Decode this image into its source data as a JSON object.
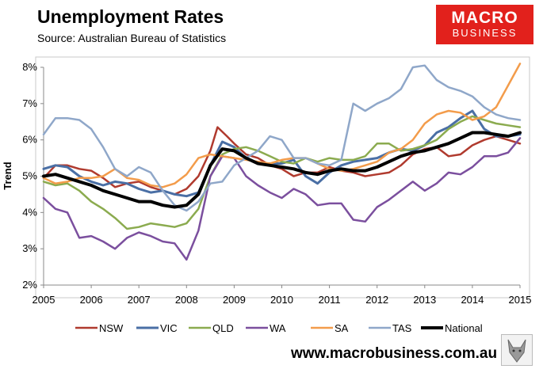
{
  "header": {
    "title": "Unemployment Rates",
    "source": "Source: Australian Bureau of Statistics"
  },
  "brand": {
    "logo_line1": "MACRO",
    "logo_line2": "BUSINESS",
    "website": "www.macrobusiness.com.au",
    "accent_color": "#e2211c"
  },
  "chart_data": {
    "type": "line",
    "title": "Unemployment Rates",
    "xlabel": "",
    "ylabel": "Trend",
    "xlim": [
      2005,
      2015
    ],
    "ylim": [
      2,
      8
    ],
    "y_ticks": [
      2,
      3,
      4,
      5,
      6,
      7,
      8
    ],
    "y_tick_labels": [
      "2%",
      "3%",
      "4%",
      "5%",
      "6%",
      "7%",
      "8%"
    ],
    "x_ticks": [
      2005,
      2006,
      2007,
      2008,
      2009,
      2010,
      2011,
      2012,
      2013,
      2014,
      2015
    ],
    "x_tick_labels": [
      "2005",
      "2006",
      "2007",
      "2008",
      "2009",
      "2010",
      "2011",
      "2012",
      "2013",
      "2014",
      "2015"
    ],
    "grid": false,
    "legend_position": "bottom",
    "series": [
      {
        "name": "NSW",
        "color": "#b03a2e",
        "width": 2.5,
        "points": [
          [
            2005,
            4.95
          ],
          [
            2005.25,
            5.3
          ],
          [
            2005.5,
            5.3
          ],
          [
            2005.75,
            5.2
          ],
          [
            2006,
            5.15
          ],
          [
            2006.25,
            4.95
          ],
          [
            2006.5,
            4.7
          ],
          [
            2006.75,
            4.8
          ],
          [
            2007,
            4.85
          ],
          [
            2007.25,
            4.7
          ],
          [
            2007.5,
            4.6
          ],
          [
            2007.75,
            4.5
          ],
          [
            2008,
            4.65
          ],
          [
            2008.25,
            5.0
          ],
          [
            2008.5,
            5.7
          ],
          [
            2008.65,
            6.35
          ],
          [
            2008.85,
            6.1
          ],
          [
            2009,
            5.9
          ],
          [
            2009.25,
            5.6
          ],
          [
            2009.5,
            5.5
          ],
          [
            2009.75,
            5.3
          ],
          [
            2010,
            5.2
          ],
          [
            2010.25,
            5.0
          ],
          [
            2010.5,
            5.1
          ],
          [
            2010.75,
            5.1
          ],
          [
            2011,
            5.25
          ],
          [
            2011.25,
            5.15
          ],
          [
            2011.5,
            5.1
          ],
          [
            2011.75,
            5.0
          ],
          [
            2012,
            5.05
          ],
          [
            2012.25,
            5.1
          ],
          [
            2012.5,
            5.3
          ],
          [
            2012.75,
            5.6
          ],
          [
            2013,
            5.75
          ],
          [
            2013.25,
            5.8
          ],
          [
            2013.5,
            5.55
          ],
          [
            2013.75,
            5.6
          ],
          [
            2014,
            5.85
          ],
          [
            2014.25,
            6.0
          ],
          [
            2014.5,
            6.1
          ],
          [
            2014.75,
            6.0
          ],
          [
            2015,
            5.9
          ]
        ]
      },
      {
        "name": "VIC",
        "color": "#4a6fa5",
        "width": 3,
        "points": [
          [
            2005,
            5.2
          ],
          [
            2005.25,
            5.3
          ],
          [
            2005.5,
            5.25
          ],
          [
            2005.75,
            5.0
          ],
          [
            2006,
            4.85
          ],
          [
            2006.25,
            4.75
          ],
          [
            2006.5,
            4.85
          ],
          [
            2006.75,
            4.8
          ],
          [
            2007,
            4.65
          ],
          [
            2007.25,
            4.55
          ],
          [
            2007.5,
            4.6
          ],
          [
            2007.75,
            4.5
          ],
          [
            2008,
            4.45
          ],
          [
            2008.25,
            4.55
          ],
          [
            2008.5,
            5.3
          ],
          [
            2008.75,
            5.95
          ],
          [
            2009,
            5.8
          ],
          [
            2009.25,
            5.5
          ],
          [
            2009.5,
            5.35
          ],
          [
            2009.75,
            5.35
          ],
          [
            2010,
            5.35
          ],
          [
            2010.25,
            5.45
          ],
          [
            2010.5,
            5.0
          ],
          [
            2010.75,
            4.8
          ],
          [
            2011,
            5.1
          ],
          [
            2011.25,
            5.3
          ],
          [
            2011.5,
            5.4
          ],
          [
            2011.75,
            5.45
          ],
          [
            2012,
            5.5
          ],
          [
            2012.25,
            5.65
          ],
          [
            2012.5,
            5.75
          ],
          [
            2012.75,
            5.7
          ],
          [
            2013,
            5.85
          ],
          [
            2013.25,
            6.2
          ],
          [
            2013.5,
            6.35
          ],
          [
            2013.75,
            6.6
          ],
          [
            2014,
            6.8
          ],
          [
            2014.25,
            6.3
          ],
          [
            2014.5,
            6.1
          ],
          [
            2014.75,
            6.1
          ],
          [
            2015,
            6.15
          ]
        ]
      },
      {
        "name": "QLD",
        "color": "#8bab4f",
        "width": 2.5,
        "points": [
          [
            2005,
            4.85
          ],
          [
            2005.25,
            4.75
          ],
          [
            2005.5,
            4.8
          ],
          [
            2005.75,
            4.6
          ],
          [
            2006,
            4.3
          ],
          [
            2006.25,
            4.1
          ],
          [
            2006.5,
            3.85
          ],
          [
            2006.75,
            3.55
          ],
          [
            2007,
            3.6
          ],
          [
            2007.25,
            3.7
          ],
          [
            2007.5,
            3.65
          ],
          [
            2007.75,
            3.6
          ],
          [
            2008,
            3.7
          ],
          [
            2008.25,
            4.1
          ],
          [
            2008.5,
            5.0
          ],
          [
            2008.75,
            5.6
          ],
          [
            2009,
            5.75
          ],
          [
            2009.25,
            5.8
          ],
          [
            2009.5,
            5.7
          ],
          [
            2009.75,
            5.55
          ],
          [
            2010,
            5.4
          ],
          [
            2010.25,
            5.35
          ],
          [
            2010.5,
            5.5
          ],
          [
            2010.75,
            5.4
          ],
          [
            2011,
            5.5
          ],
          [
            2011.25,
            5.45
          ],
          [
            2011.5,
            5.45
          ],
          [
            2011.75,
            5.55
          ],
          [
            2012,
            5.9
          ],
          [
            2012.25,
            5.9
          ],
          [
            2012.5,
            5.7
          ],
          [
            2012.75,
            5.75
          ],
          [
            2013,
            5.85
          ],
          [
            2013.25,
            6.0
          ],
          [
            2013.5,
            6.3
          ],
          [
            2013.75,
            6.5
          ],
          [
            2014,
            6.65
          ],
          [
            2014.25,
            6.55
          ],
          [
            2014.5,
            6.45
          ],
          [
            2014.75,
            6.4
          ],
          [
            2015,
            6.35
          ]
        ]
      },
      {
        "name": "WA",
        "color": "#7b4f9e",
        "width": 2.5,
        "points": [
          [
            2005,
            4.4
          ],
          [
            2005.25,
            4.1
          ],
          [
            2005.5,
            4.0
          ],
          [
            2005.75,
            3.3
          ],
          [
            2006,
            3.35
          ],
          [
            2006.25,
            3.2
          ],
          [
            2006.5,
            3.0
          ],
          [
            2006.75,
            3.3
          ],
          [
            2007,
            3.45
          ],
          [
            2007.25,
            3.35
          ],
          [
            2007.5,
            3.2
          ],
          [
            2007.75,
            3.15
          ],
          [
            2008,
            2.7
          ],
          [
            2008.25,
            3.5
          ],
          [
            2008.5,
            5.0
          ],
          [
            2008.75,
            5.55
          ],
          [
            2009,
            5.5
          ],
          [
            2009.25,
            5.0
          ],
          [
            2009.5,
            4.75
          ],
          [
            2009.75,
            4.55
          ],
          [
            2010,
            4.4
          ],
          [
            2010.25,
            4.65
          ],
          [
            2010.5,
            4.5
          ],
          [
            2010.75,
            4.2
          ],
          [
            2011,
            4.25
          ],
          [
            2011.25,
            4.25
          ],
          [
            2011.5,
            3.8
          ],
          [
            2011.75,
            3.75
          ],
          [
            2012,
            4.15
          ],
          [
            2012.25,
            4.35
          ],
          [
            2012.5,
            4.6
          ],
          [
            2012.75,
            4.85
          ],
          [
            2013,
            4.6
          ],
          [
            2013.25,
            4.8
          ],
          [
            2013.5,
            5.1
          ],
          [
            2013.75,
            5.05
          ],
          [
            2014,
            5.25
          ],
          [
            2014.25,
            5.55
          ],
          [
            2014.5,
            5.55
          ],
          [
            2014.75,
            5.65
          ],
          [
            2015,
            6.05
          ]
        ]
      },
      {
        "name": "SA",
        "color": "#f39c4b",
        "width": 2.5,
        "points": [
          [
            2005,
            4.95
          ],
          [
            2005.25,
            4.8
          ],
          [
            2005.5,
            4.85
          ],
          [
            2005.75,
            4.95
          ],
          [
            2006,
            4.95
          ],
          [
            2006.25,
            5.0
          ],
          [
            2006.5,
            5.2
          ],
          [
            2006.75,
            4.95
          ],
          [
            2007,
            4.9
          ],
          [
            2007.25,
            4.75
          ],
          [
            2007.5,
            4.7
          ],
          [
            2007.75,
            4.8
          ],
          [
            2008,
            5.05
          ],
          [
            2008.25,
            5.5
          ],
          [
            2008.5,
            5.6
          ],
          [
            2008.75,
            5.55
          ],
          [
            2009,
            5.5
          ],
          [
            2009.25,
            5.45
          ],
          [
            2009.5,
            5.4
          ],
          [
            2009.75,
            5.35
          ],
          [
            2010,
            5.45
          ],
          [
            2010.25,
            5.5
          ],
          [
            2010.5,
            5.5
          ],
          [
            2010.75,
            5.35
          ],
          [
            2011,
            5.2
          ],
          [
            2011.25,
            5.15
          ],
          [
            2011.5,
            5.2
          ],
          [
            2011.75,
            5.3
          ],
          [
            2012,
            5.4
          ],
          [
            2012.25,
            5.65
          ],
          [
            2012.5,
            5.75
          ],
          [
            2012.75,
            6.0
          ],
          [
            2013,
            6.45
          ],
          [
            2013.25,
            6.7
          ],
          [
            2013.5,
            6.8
          ],
          [
            2013.75,
            6.75
          ],
          [
            2014,
            6.55
          ],
          [
            2014.25,
            6.65
          ],
          [
            2014.5,
            6.9
          ],
          [
            2014.75,
            7.5
          ],
          [
            2015,
            8.1
          ]
        ]
      },
      {
        "name": "TAS",
        "color": "#8fa7c9",
        "width": 2.5,
        "points": [
          [
            2005,
            6.15
          ],
          [
            2005.25,
            6.6
          ],
          [
            2005.5,
            6.6
          ],
          [
            2005.75,
            6.55
          ],
          [
            2006,
            6.3
          ],
          [
            2006.25,
            5.8
          ],
          [
            2006.5,
            5.2
          ],
          [
            2006.75,
            5.0
          ],
          [
            2007,
            5.25
          ],
          [
            2007.25,
            5.1
          ],
          [
            2007.5,
            4.6
          ],
          [
            2007.75,
            4.2
          ],
          [
            2008,
            4.05
          ],
          [
            2008.25,
            4.3
          ],
          [
            2008.5,
            4.8
          ],
          [
            2008.75,
            4.85
          ],
          [
            2009,
            5.3
          ],
          [
            2009.25,
            5.5
          ],
          [
            2009.5,
            5.7
          ],
          [
            2009.75,
            6.1
          ],
          [
            2010,
            6.0
          ],
          [
            2010.25,
            5.5
          ],
          [
            2010.5,
            5.5
          ],
          [
            2010.75,
            5.35
          ],
          [
            2011,
            5.3
          ],
          [
            2011.25,
            5.45
          ],
          [
            2011.5,
            7.0
          ],
          [
            2011.75,
            6.8
          ],
          [
            2012,
            7.0
          ],
          [
            2012.25,
            7.15
          ],
          [
            2012.5,
            7.4
          ],
          [
            2012.75,
            8.0
          ],
          [
            2013,
            8.05
          ],
          [
            2013.25,
            7.65
          ],
          [
            2013.5,
            7.45
          ],
          [
            2013.75,
            7.35
          ],
          [
            2014,
            7.2
          ],
          [
            2014.25,
            6.9
          ],
          [
            2014.5,
            6.7
          ],
          [
            2014.75,
            6.6
          ],
          [
            2015,
            6.55
          ]
        ]
      },
      {
        "name": "National",
        "color": "#000000",
        "width": 4,
        "points": [
          [
            2005,
            5.0
          ],
          [
            2005.25,
            5.05
          ],
          [
            2005.5,
            4.95
          ],
          [
            2005.75,
            4.85
          ],
          [
            2006,
            4.75
          ],
          [
            2006.25,
            4.6
          ],
          [
            2006.5,
            4.5
          ],
          [
            2006.75,
            4.4
          ],
          [
            2007,
            4.3
          ],
          [
            2007.25,
            4.3
          ],
          [
            2007.5,
            4.2
          ],
          [
            2007.75,
            4.15
          ],
          [
            2008,
            4.2
          ],
          [
            2008.25,
            4.5
          ],
          [
            2008.5,
            5.3
          ],
          [
            2008.75,
            5.75
          ],
          [
            2009,
            5.7
          ],
          [
            2009.25,
            5.5
          ],
          [
            2009.5,
            5.35
          ],
          [
            2009.75,
            5.3
          ],
          [
            2010,
            5.25
          ],
          [
            2010.25,
            5.2
          ],
          [
            2010.5,
            5.1
          ],
          [
            2010.75,
            5.05
          ],
          [
            2011,
            5.15
          ],
          [
            2011.25,
            5.2
          ],
          [
            2011.5,
            5.15
          ],
          [
            2011.75,
            5.15
          ],
          [
            2012,
            5.25
          ],
          [
            2012.25,
            5.4
          ],
          [
            2012.5,
            5.55
          ],
          [
            2012.75,
            5.65
          ],
          [
            2013,
            5.7
          ],
          [
            2013.25,
            5.8
          ],
          [
            2013.5,
            5.9
          ],
          [
            2013.75,
            6.05
          ],
          [
            2014,
            6.2
          ],
          [
            2014.25,
            6.2
          ],
          [
            2014.5,
            6.15
          ],
          [
            2014.75,
            6.1
          ],
          [
            2015,
            6.2
          ]
        ]
      }
    ]
  }
}
